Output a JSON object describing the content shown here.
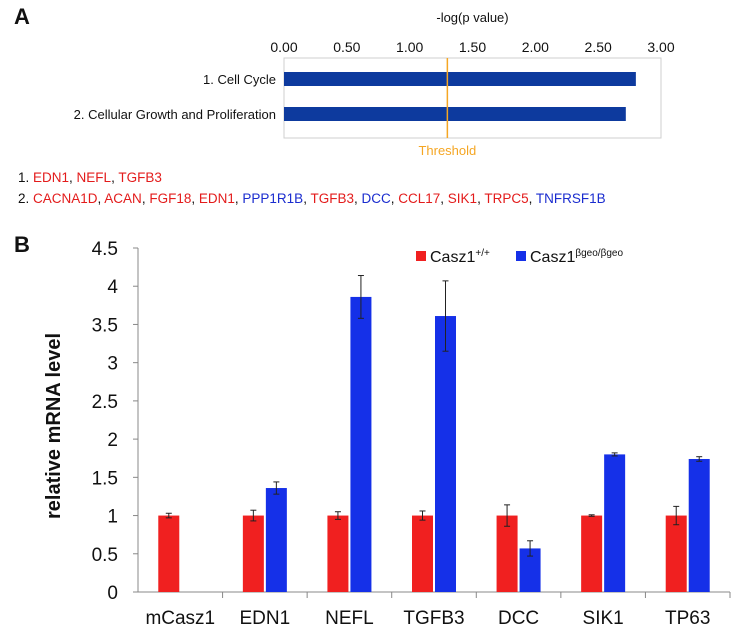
{
  "panel_labels": {
    "a": "A",
    "b": "B"
  },
  "gene_lists": [
    {
      "index": "1.",
      "genes": [
        {
          "name": "EDN1",
          "color": "#e31b1b"
        },
        {
          "name": "NEFL",
          "color": "#e31b1b"
        },
        {
          "name": "TGFB3",
          "color": "#e31b1b"
        }
      ]
    },
    {
      "index": "2.",
      "genes": [
        {
          "name": "CACNA1D",
          "color": "#e31b1b"
        },
        {
          "name": "ACAN",
          "color": "#e31b1b"
        },
        {
          "name": "FGF18",
          "color": "#e31b1b"
        },
        {
          "name": "EDN1",
          "color": "#e31b1b"
        },
        {
          "name": "PPP1R1B",
          "color": "#1a2ccf"
        },
        {
          "name": "TGFB3",
          "color": "#e31b1b"
        },
        {
          "name": "DCC",
          "color": "#1a2ccf"
        },
        {
          "name": "CCL17",
          "color": "#e31b1b"
        },
        {
          "name": "SIK1",
          "color": "#e31b1b"
        },
        {
          "name": "TRPC5",
          "color": "#e31b1b"
        },
        {
          "name": "TNFRSF1B",
          "color": "#1a2ccf"
        }
      ]
    }
  ],
  "chart_data": [
    {
      "type": "bar",
      "orientation": "horizontal",
      "title": "-log(p value)",
      "categories": [
        "1. Cell Cycle",
        "2. Cellular Growth and Proliferation"
      ],
      "values": [
        2.8,
        2.72
      ],
      "xlim": [
        0,
        3
      ],
      "xticks": [
        "0.00",
        "0.50",
        "1.00",
        "1.50",
        "2.00",
        "2.50",
        "3.00"
      ],
      "threshold": {
        "value": 1.3,
        "label": "Threshold",
        "color": "#f5a623"
      },
      "bar_color": "#0d3a9e",
      "grid": false
    },
    {
      "type": "bar",
      "ylabel": "relative mRNA level",
      "ylim": [
        0,
        4.5
      ],
      "yticks": [
        "0",
        "0.5",
        "1",
        "1.5",
        "2",
        "2.5",
        "3",
        "3.5",
        "4",
        "4.5"
      ],
      "categories": [
        "mCasz1",
        "EDN1",
        "NEFL",
        "TGFB3",
        "DCC",
        "SIK1",
        "TP63"
      ],
      "legend_position": "top-right",
      "grid": false,
      "series": [
        {
          "name": "Casz1",
          "name_superscript": "+/+",
          "color": "#f02020",
          "values": [
            1.0,
            1.0,
            1.0,
            1.0,
            1.0,
            1.0,
            1.0
          ],
          "errors": [
            0.03,
            0.07,
            0.05,
            0.06,
            0.14,
            0.01,
            0.12
          ]
        },
        {
          "name": "Casz1",
          "name_superscript": "βgeo/βgeo",
          "color": "#1530e8",
          "values": [
            0.0,
            1.36,
            3.86,
            3.61,
            0.57,
            1.8,
            1.74
          ],
          "errors": [
            0.0,
            0.08,
            0.28,
            0.46,
            0.1,
            0.02,
            0.03
          ]
        }
      ]
    }
  ]
}
